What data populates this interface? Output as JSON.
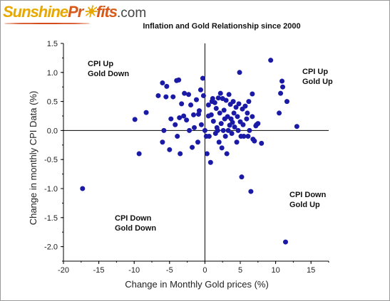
{
  "logo": {
    "part1": "Sunshine",
    "part2": "Pr",
    "part3": "fits",
    "part4": ".com"
  },
  "chart_data": {
    "type": "scatter",
    "title": "Inflation and Gold Relationship since 2000",
    "xlabel": "Change in Monthly Gold prices (%)",
    "ylabel": "Change in monthly CPI Data (%)",
    "xlim": [
      -20,
      17.5
    ],
    "ylim": [
      -2.25,
      1.5
    ],
    "xticks": [
      -20,
      -15,
      -10,
      -5,
      0,
      5,
      10,
      15
    ],
    "yticks": [
      1.5,
      1.0,
      0.5,
      0.0,
      -0.5,
      -1.0,
      -1.5,
      -2.0
    ],
    "ytick_labels": [
      "1.5",
      "1.0",
      "0.5",
      "0.0",
      "-0.5",
      "-1.0",
      "-1.5",
      "-2.0"
    ],
    "point_color": "#1a1aa6",
    "quadrant_labels": {
      "top_left": [
        "CPI Up",
        "Gold Down"
      ],
      "top_right": [
        "CPI Up",
        "Gold Up"
      ],
      "bottom_right": [
        "CPI Down",
        "Gold Up"
      ],
      "bottom_left": [
        "CPI Down",
        "Gold Down"
      ]
    },
    "points": [
      [
        -17.3,
        -1.0
      ],
      [
        -9.9,
        0.19
      ],
      [
        -9.3,
        -0.4
      ],
      [
        -8.3,
        0.31
      ],
      [
        -6.6,
        0.6
      ],
      [
        -6.0,
        0.82
      ],
      [
        -5.4,
        0.76
      ],
      [
        -5.0,
        -0.33
      ],
      [
        -6.0,
        -0.2
      ],
      [
        -5.8,
        0.0
      ],
      [
        -4.8,
        0.2
      ],
      [
        -4.5,
        0.58
      ],
      [
        -4.2,
        0.1
      ],
      [
        -4.0,
        0.86
      ],
      [
        -3.7,
        0.87
      ],
      [
        -3.9,
        -0.1
      ],
      [
        -3.6,
        0.22
      ],
      [
        -3.5,
        -0.4
      ],
      [
        -3.3,
        0.46
      ],
      [
        -3.0,
        0.25
      ],
      [
        -2.9,
        0.64
      ],
      [
        -2.6,
        0.18
      ],
      [
        -2.3,
        0.62
      ],
      [
        -2.2,
        0.0
      ],
      [
        -2.0,
        0.44
      ],
      [
        -1.8,
        -0.29
      ],
      [
        -1.6,
        0.27
      ],
      [
        -1.5,
        0.05
      ],
      [
        -1.2,
        0.53
      ],
      [
        -1.0,
        -0.2
      ],
      [
        -0.8,
        0.34
      ],
      [
        -0.6,
        0.7
      ],
      [
        -0.5,
        0.1
      ],
      [
        -0.3,
        0.9
      ],
      [
        -0.2,
        0.6
      ],
      [
        0.0,
        0.0
      ],
      [
        0.2,
        -0.1
      ],
      [
        0.3,
        -0.4
      ],
      [
        0.5,
        0.44
      ],
      [
        0.6,
        -0.1
      ],
      [
        0.8,
        -0.55
      ],
      [
        0.9,
        0.27
      ],
      [
        1.0,
        0.5
      ],
      [
        1.1,
        0.55
      ],
      [
        1.2,
        0.16
      ],
      [
        1.4,
        0.48
      ],
      [
        1.5,
        -0.05
      ],
      [
        1.6,
        0.38
      ],
      [
        1.8,
        0.0
      ],
      [
        1.9,
        0.56
      ],
      [
        2.0,
        -0.2
      ],
      [
        2.1,
        0.3
      ],
      [
        2.2,
        0.64
      ],
      [
        2.3,
        0.12
      ],
      [
        2.4,
        -0.3
      ],
      [
        2.5,
        0.55
      ],
      [
        2.6,
        0.0
      ],
      [
        2.7,
        0.35
      ],
      [
        2.8,
        0.2
      ],
      [
        2.9,
        -0.1
      ],
      [
        3.0,
        0.52
      ],
      [
        3.1,
        -0.4
      ],
      [
        3.2,
        0.24
      ],
      [
        3.3,
        0.0
      ],
      [
        3.4,
        0.62
      ],
      [
        3.5,
        0.09
      ],
      [
        3.6,
        0.45
      ],
      [
        3.7,
        0.2
      ],
      [
        3.8,
        -0.05
      ],
      [
        4.0,
        0.5
      ],
      [
        4.1,
        0.3
      ],
      [
        4.2,
        0.06
      ],
      [
        4.4,
        0.4
      ],
      [
        4.5,
        -0.2
      ],
      [
        4.6,
        0.24
      ],
      [
        4.7,
        0.0
      ],
      [
        4.8,
        0.46
      ],
      [
        4.9,
        1.0
      ],
      [
        5.0,
        0.15
      ],
      [
        5.1,
        -0.1
      ],
      [
        5.2,
        -0.8
      ],
      [
        5.3,
        0.37
      ],
      [
        5.4,
        0.1
      ],
      [
        5.5,
        -0.1
      ],
      [
        5.7,
        0.42
      ],
      [
        5.9,
        0.2
      ],
      [
        6.0,
        0.3
      ],
      [
        6.1,
        -0.1
      ],
      [
        6.2,
        0.5
      ],
      [
        6.3,
        0.0
      ],
      [
        6.5,
        -1.05
      ],
      [
        6.7,
        0.24
      ],
      [
        6.8,
        -0.15
      ],
      [
        7.0,
        -0.18
      ],
      [
        7.2,
        0.08
      ],
      [
        7.3,
        0.1
      ],
      [
        7.5,
        0.12
      ],
      [
        8.0,
        -0.22
      ],
      [
        9.3,
        1.21
      ],
      [
        10.5,
        0.3
      ],
      [
        10.7,
        0.64
      ],
      [
        10.9,
        0.85
      ],
      [
        11.0,
        0.75
      ],
      [
        11.4,
        -1.92
      ],
      [
        11.6,
        0.5
      ],
      [
        13.0,
        0.07
      ],
      [
        6.7,
        0.63
      ],
      [
        -5.5,
        0.58
      ],
      [
        0.5,
        0.25
      ],
      [
        1.7,
        0.05
      ],
      [
        3.9,
        0.14
      ],
      [
        -0.9,
        0.28
      ]
    ]
  }
}
